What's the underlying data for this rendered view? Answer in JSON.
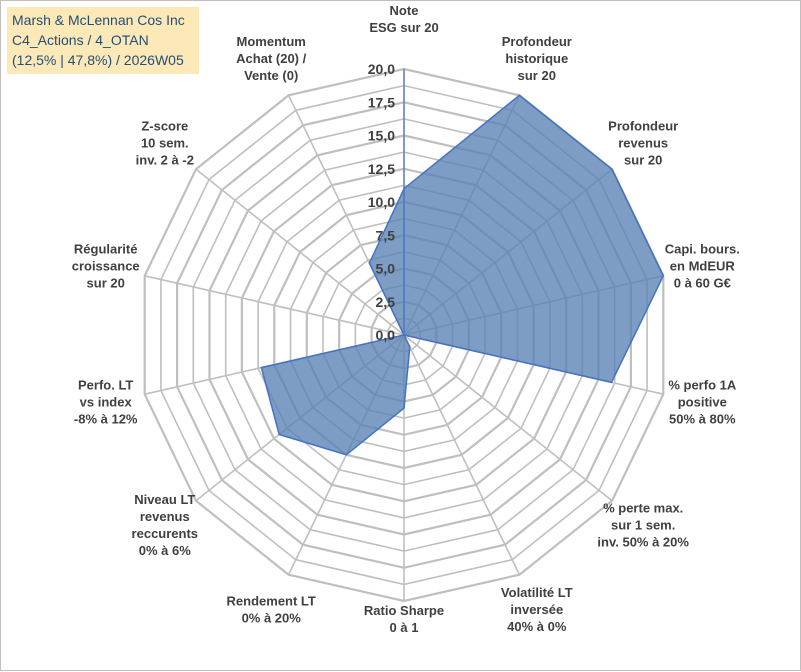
{
  "title_lines": [
    "Marsh & McLennan Cos Inc",
    "C4_Actions / 4_OTAN",
    "(12,5% | 47,8%) / 2026W05"
  ],
  "chart_data": {
    "type": "radar",
    "rmin": 0,
    "rmax": 20,
    "tick_step": 2.5,
    "grid_step": 1.25,
    "tick_labels": [
      "0,0",
      "2,5",
      "5,0",
      "7,5",
      "10,0",
      "12,5",
      "15,0",
      "17,5",
      "20,0"
    ],
    "grid": true,
    "legend": "none",
    "fill_color": "#5a82b4",
    "line_color": "#4472c4",
    "grid_color": "#bfbfbf",
    "axes": [
      {
        "label": [
          "Note",
          "ESG sur 20"
        ],
        "value": 11
      },
      {
        "label": [
          "Profondeur",
          "historique",
          "sur 20"
        ],
        "value": 20
      },
      {
        "label": [
          "Profondeur",
          "revenus",
          "sur 20"
        ],
        "value": 20
      },
      {
        "label": [
          "Capi. bours.",
          "en MdEUR",
          "0 à 60 G€"
        ],
        "value": 20
      },
      {
        "label": [
          "% perfo 1A",
          "positive",
          "50% à 80%"
        ],
        "value": 16
      },
      {
        "label": [
          "% perte max.",
          "sur 1 sem.",
          "inv. 50% à 20%"
        ],
        "value": 0
      },
      {
        "label": [
          "Volatilité LT",
          "inversée",
          "40% à 0%"
        ],
        "value": 1
      },
      {
        "label": [
          "Ratio Sharpe",
          "0 à 1"
        ],
        "value": 5.5
      },
      {
        "label": [
          "Rendement LT",
          "0% à 20%"
        ],
        "value": 10
      },
      {
        "label": [
          "Niveau LT",
          "revenus",
          "reccurents",
          "0% à 6%"
        ],
        "value": 12
      },
      {
        "label": [
          "Perfo. LT",
          "vs index",
          "-8% à 12%"
        ],
        "value": 11
      },
      {
        "label": [
          "Régularité",
          "croissance",
          "sur 20"
        ],
        "value": 0
      },
      {
        "label": [
          "Z-score",
          "10 sem.",
          "inv. 2 à -2"
        ],
        "value": 0
      },
      {
        "label": [
          "Momentum",
          "Achat (20) /",
          "Vente (0)"
        ],
        "value": 6
      }
    ]
  }
}
